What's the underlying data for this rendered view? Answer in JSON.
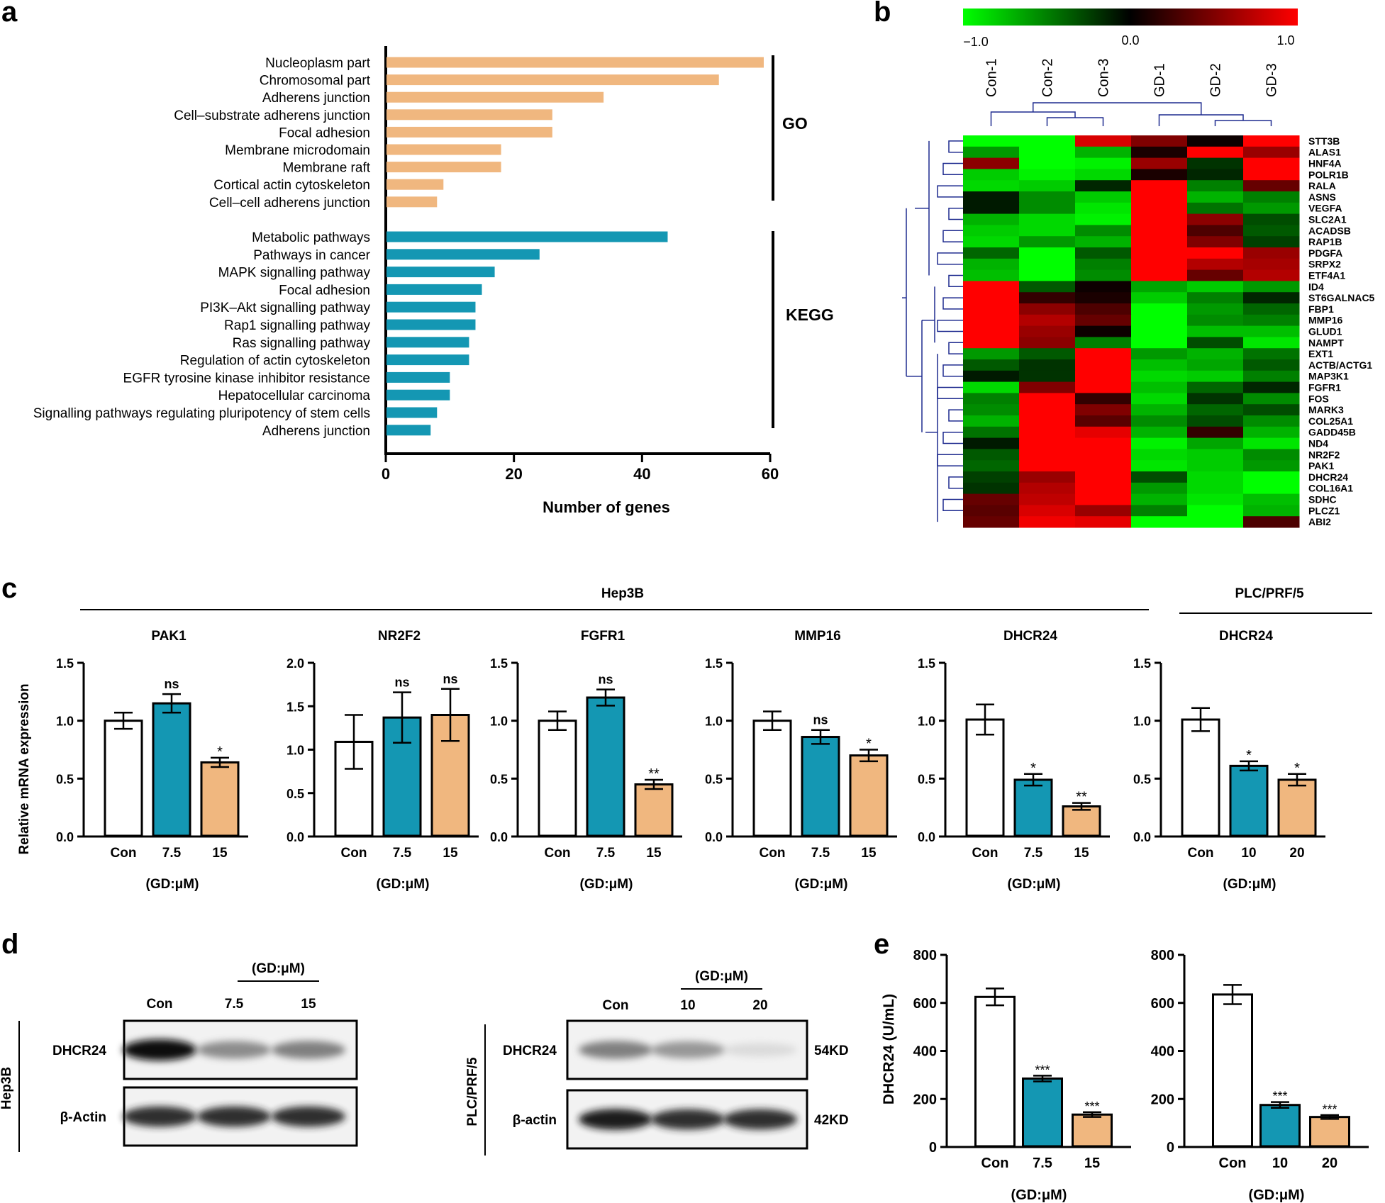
{
  "colors": {
    "go_bar": "#f0b77f",
    "kegg_bar": "#1497b3",
    "con_bar": "#ffffff",
    "dose_low": "#1497b3",
    "dose_high": "#f0b77f",
    "heat_low": "#00ff00",
    "heat_mid": "#000000",
    "heat_high": "#ff0000",
    "dendro": "#1f2b8f"
  },
  "panel_letters": [
    "a",
    "b",
    "c",
    "d",
    "e"
  ],
  "chart_data": [
    {
      "id": "a",
      "type": "bar",
      "orientation": "horizontal",
      "xlabel": "Number of genes",
      "xlim": [
        0,
        60
      ],
      "xticks": [
        "0",
        "20",
        "40",
        "60"
      ],
      "groups": [
        {
          "name": "GO",
          "categories": [
            "Nucleoplasm part",
            "Chromosomal part",
            "Adherens junction",
            "Cell–substrate adherens junction",
            "Focal adhesion",
            "Membrane microdomain",
            "Membrane raft",
            "Cortical actin cytoskeleton",
            "Cell–cell adherens junction"
          ],
          "values": [
            59,
            52,
            34,
            26,
            26,
            18,
            18,
            9,
            8
          ]
        },
        {
          "name": "KEGG",
          "categories": [
            "Metabolic pathways",
            "Pathways in cancer",
            "MAPK signalling pathway",
            "Focal adhesion",
            "PI3K–Akt signalling pathway",
            "Rap1 signalling pathway",
            "Ras signalling pathway",
            "Regulation of actin cytoskeleton",
            "EGFR tyrosine kinase inhibitor resistance",
            "Hepatocellular carcinoma",
            "Signalling pathways regulating pluripotency of stem cells",
            "Adherens junction"
          ],
          "values": [
            44,
            24,
            17,
            15,
            14,
            14,
            13,
            13,
            10,
            10,
            8,
            7
          ]
        }
      ]
    },
    {
      "id": "b",
      "type": "heatmap",
      "scale": {
        "min": -1.0,
        "max": 1.0,
        "labels": [
          "−1.0",
          "0.0",
          "1.0"
        ]
      },
      "columns": [
        "Con-1",
        "Con-2",
        "Con-3",
        "GD-1",
        "GD-2",
        "GD-3"
      ],
      "rows": [
        "STT3B",
        "ALAS1",
        "HNF4A",
        "POLR1B",
        "RALA",
        "ASNS",
        "VEGFA",
        "SLC2A1",
        "ACADSB",
        "RAP1B",
        "PDGFA",
        "SRPX2",
        "ETF4A1",
        "ID4",
        "ST6GALNAC5",
        "FBP1",
        "MMP16",
        "GLUD1",
        "NAMPT",
        "EXT1",
        "ACTB/ACTG1",
        "MAP3K1",
        "FGFR1",
        "FOS",
        "MARK3",
        "COL25A1",
        "GADD45B",
        "ND4",
        "NR2F2",
        "PAK1",
        "DHCR24",
        "COL16A1",
        "SDHC",
        "PLCZ1",
        "ABI2"
      ],
      "values": [
        [
          -1.0,
          -1.0,
          0.85,
          0.5,
          0.05,
          1.0
        ],
        [
          -0.6,
          -1.0,
          -0.7,
          0.1,
          1.0,
          0.6
        ],
        [
          0.55,
          -1.0,
          -0.95,
          0.6,
          -0.2,
          1.0
        ],
        [
          -0.8,
          -0.95,
          -0.85,
          0.1,
          -0.15,
          1.0
        ],
        [
          -0.85,
          -0.8,
          -0.15,
          1.0,
          -0.5,
          0.4
        ],
        [
          -0.1,
          -0.55,
          -0.8,
          1.0,
          -0.7,
          -0.5
        ],
        [
          -0.1,
          -0.55,
          -0.9,
          1.0,
          -0.45,
          -0.6
        ],
        [
          -0.7,
          -0.85,
          -0.95,
          1.0,
          0.55,
          -0.3
        ],
        [
          -0.8,
          -0.85,
          -0.55,
          1.0,
          0.3,
          -0.35
        ],
        [
          -0.85,
          -0.6,
          -0.7,
          1.0,
          0.5,
          -0.25
        ],
        [
          -0.4,
          -1.0,
          -0.35,
          1.0,
          1.0,
          0.6
        ],
        [
          -0.7,
          -1.0,
          -0.5,
          1.0,
          0.7,
          0.65
        ],
        [
          -0.75,
          -1.0,
          -0.55,
          1.0,
          0.4,
          0.7
        ],
        [
          1.0,
          -0.35,
          0.05,
          -0.65,
          -0.8,
          -0.6
        ],
        [
          1.0,
          0.2,
          0.1,
          -0.8,
          -0.5,
          -0.15
        ],
        [
          1.0,
          0.55,
          0.3,
          -1.0,
          -0.6,
          -0.4
        ],
        [
          1.0,
          0.7,
          0.4,
          -1.0,
          -0.55,
          -0.5
        ],
        [
          1.0,
          0.6,
          0.05,
          -1.0,
          -0.75,
          -0.75
        ],
        [
          1.0,
          0.55,
          -0.5,
          -1.0,
          -0.3,
          -0.9
        ],
        [
          -0.6,
          -0.35,
          1.0,
          -0.6,
          -0.7,
          -0.45
        ],
        [
          -0.35,
          -0.2,
          1.0,
          -0.75,
          -0.65,
          -0.35
        ],
        [
          -0.1,
          -0.2,
          1.0,
          -0.85,
          -0.8,
          -0.5
        ],
        [
          -0.85,
          0.5,
          1.0,
          -0.75,
          -0.4,
          -0.15
        ],
        [
          -0.5,
          1.0,
          0.2,
          -0.85,
          -0.2,
          -0.55
        ],
        [
          -0.55,
          1.0,
          0.5,
          -0.7,
          -0.4,
          -0.3
        ],
        [
          -0.7,
          1.0,
          0.35,
          -0.55,
          -0.3,
          -0.55
        ],
        [
          -0.45,
          1.0,
          0.9,
          -0.7,
          0.2,
          -0.7
        ],
        [
          -0.1,
          1.0,
          1.0,
          -0.95,
          -0.65,
          -0.9
        ],
        [
          -0.35,
          1.0,
          1.0,
          -0.85,
          -0.8,
          -0.55
        ],
        [
          -0.4,
          1.0,
          1.0,
          -0.9,
          -0.8,
          -0.6
        ],
        [
          -0.25,
          0.6,
          1.0,
          -0.3,
          -0.85,
          -1.0
        ],
        [
          -0.2,
          0.7,
          1.0,
          -0.6,
          -0.85,
          -1.0
        ],
        [
          0.4,
          0.75,
          1.0,
          -0.7,
          -0.9,
          -0.75
        ],
        [
          0.35,
          0.85,
          0.6,
          -0.5,
          -1.0,
          -0.7
        ],
        [
          0.4,
          0.95,
          0.9,
          -1.0,
          -1.0,
          0.3
        ]
      ]
    },
    {
      "id": "c",
      "type": "bar",
      "group_labels": [
        "Hep3B",
        "PLC/PRF/5"
      ],
      "ylabel": "Relative mRNA expression",
      "xlabel": "(GD:μM)",
      "subplots": [
        {
          "title": "PAK1",
          "categories": [
            "Con",
            "7.5",
            "15"
          ],
          "values": [
            1.0,
            1.15,
            0.64
          ],
          "errors": [
            0.07,
            0.08,
            0.04
          ],
          "ylim": [
            0,
            1.5
          ],
          "yticks": [
            "0.0",
            "0.5",
            "1.0",
            "1.5"
          ],
          "annotations": [
            "",
            "ns",
            "*"
          ]
        },
        {
          "title": "NR2F2",
          "categories": [
            "Con",
            "7.5",
            "15"
          ],
          "values": [
            1.09,
            1.37,
            1.4
          ],
          "errors": [
            0.31,
            0.29,
            0.3
          ],
          "ylim": [
            0,
            2.0
          ],
          "yticks": [
            "0.0",
            "0.5",
            "1.0",
            "1.5",
            "2.0"
          ],
          "annotations": [
            "",
            "ns",
            "ns"
          ]
        },
        {
          "title": "FGFR1",
          "categories": [
            "Con",
            "7.5",
            "15"
          ],
          "values": [
            1.0,
            1.2,
            0.45
          ],
          "errors": [
            0.08,
            0.07,
            0.04
          ],
          "ylim": [
            0,
            1.5
          ],
          "yticks": [
            "0.0",
            "0.5",
            "1.0",
            "1.5"
          ],
          "annotations": [
            "",
            "ns",
            "**"
          ]
        },
        {
          "title": "MMP16",
          "categories": [
            "Con",
            "7.5",
            "15"
          ],
          "values": [
            1.0,
            0.86,
            0.7
          ],
          "errors": [
            0.08,
            0.06,
            0.05
          ],
          "ylim": [
            0,
            1.5
          ],
          "yticks": [
            "0.0",
            "0.5",
            "1.0",
            "1.5"
          ],
          "annotations": [
            "",
            "ns",
            "*"
          ]
        },
        {
          "title": "DHCR24",
          "categories": [
            "Con",
            "7.5",
            "15"
          ],
          "values": [
            1.01,
            0.49,
            0.26
          ],
          "errors": [
            0.13,
            0.05,
            0.03
          ],
          "ylim": [
            0,
            1.5
          ],
          "yticks": [
            "0.0",
            "0.5",
            "1.0",
            "1.5"
          ],
          "annotations": [
            "",
            "*",
            "**"
          ]
        },
        {
          "title": "DHCR24",
          "categories": [
            "Con",
            "10",
            "20"
          ],
          "values": [
            1.01,
            0.61,
            0.49
          ],
          "errors": [
            0.1,
            0.04,
            0.05
          ],
          "ylim": [
            0,
            1.5
          ],
          "yticks": [
            "0.0",
            "0.5",
            "1.0",
            "1.5"
          ],
          "annotations": [
            "",
            "*",
            "*"
          ]
        }
      ]
    },
    {
      "id": "e",
      "type": "bar",
      "ylabel": "DHCR24 (U/mL)",
      "xlabel": "(GD:μM)",
      "subplots": [
        {
          "categories": [
            "Con",
            "7.5",
            "15"
          ],
          "values": [
            625,
            285,
            135
          ],
          "errors": [
            35,
            12,
            10
          ],
          "ylim": [
            0,
            800
          ],
          "yticks": [
            "0",
            "200",
            "400",
            "600",
            "800"
          ],
          "annotations": [
            "",
            "***",
            "***"
          ]
        },
        {
          "categories": [
            "Con",
            "10",
            "20"
          ],
          "values": [
            635,
            175,
            125
          ],
          "errors": [
            40,
            12,
            8
          ],
          "ylim": [
            0,
            800
          ],
          "yticks": [
            "0",
            "200",
            "400",
            "600",
            "800"
          ],
          "annotations": [
            "",
            "***",
            "***"
          ]
        }
      ]
    }
  ],
  "western": {
    "left": {
      "cell_line": "Hep3B",
      "dose_label": "(GD:μM)",
      "lanes": [
        "Con",
        "7.5",
        "15"
      ],
      "bands": [
        {
          "name": "DHCR24",
          "intensity": [
            1.0,
            0.55,
            0.6
          ]
        },
        {
          "name": "β-Actin",
          "intensity": [
            0.9,
            0.9,
            0.9
          ]
        }
      ]
    },
    "right": {
      "cell_line": "PLC/PRF/5",
      "dose_label": "(GD:μM)",
      "lanes": [
        "Con",
        "10",
        "20"
      ],
      "bands": [
        {
          "name": "DHCR24",
          "intensity": [
            0.6,
            0.5,
            0.08
          ],
          "size": "54KD"
        },
        {
          "name": "β-actin",
          "intensity": [
            0.95,
            0.9,
            0.9
          ],
          "size": "42KD"
        }
      ]
    }
  }
}
